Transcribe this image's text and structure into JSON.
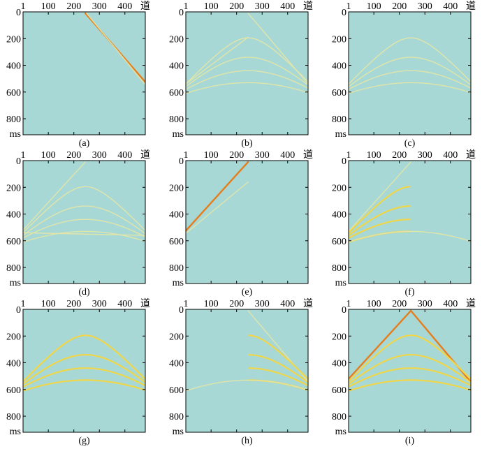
{
  "colors": {
    "background": "#a8d8d5",
    "weak": "#e3e6a8",
    "medium": "#efd64a",
    "strong": "#e67d1c",
    "axis": "#000000"
  },
  "axes": {
    "x_ticks": [
      "1",
      "100",
      "200",
      "300",
      "400"
    ],
    "x_tick_values": [
      1,
      100,
      200,
      300,
      400
    ],
    "x_unit_label": "道",
    "y_ticks": [
      "0",
      "200",
      "400",
      "600",
      "800"
    ],
    "y_tick_values": [
      0,
      200,
      400,
      600,
      800
    ],
    "y_unit_label": "ms",
    "x_range": [
      1,
      480
    ],
    "y_range": [
      0,
      920
    ]
  },
  "panels": [
    {
      "label": "(a)",
      "events": [
        {
          "kind": "line",
          "from": [
            245,
            10
          ],
          "to": [
            480,
            525
          ],
          "strength": "strong"
        },
        {
          "kind": "line",
          "from": [
            250,
            10
          ],
          "to": [
            480,
            545
          ],
          "strength": "weak"
        }
      ]
    },
    {
      "label": "(b)",
      "events": [
        {
          "kind": "line",
          "from": [
            245,
            10
          ],
          "to": [
            480,
            540
          ],
          "strength": "weak"
        },
        {
          "kind": "line",
          "from": [
            1,
            540
          ],
          "to": [
            245,
            190
          ],
          "strength": "weak"
        },
        {
          "kind": "hyperbola",
          "apex_x": 245,
          "t0": 195,
          "edge_t": 540,
          "strength": "weak"
        },
        {
          "kind": "hyperbola",
          "apex_x": 245,
          "t0": 340,
          "edge_t": 560,
          "strength": "weak"
        },
        {
          "kind": "hyperbola",
          "apex_x": 245,
          "t0": 440,
          "edge_t": 580,
          "strength": "weak"
        },
        {
          "kind": "hyperbola",
          "apex_x": 245,
          "t0": 530,
          "edge_t": 610,
          "strength": "weak"
        }
      ]
    },
    {
      "label": "(c)",
      "events": [
        {
          "kind": "hyperbola",
          "apex_x": 245,
          "t0": 195,
          "edge_t": 540,
          "strength": "weak"
        },
        {
          "kind": "hyperbola",
          "apex_x": 245,
          "t0": 340,
          "edge_t": 560,
          "strength": "weak"
        },
        {
          "kind": "hyperbola",
          "apex_x": 245,
          "t0": 440,
          "edge_t": 580,
          "strength": "weak"
        },
        {
          "kind": "hyperbola",
          "apex_x": 245,
          "t0": 530,
          "edge_t": 610,
          "strength": "weak"
        }
      ]
    },
    {
      "label": "(d)",
      "events": [
        {
          "kind": "line",
          "from": [
            1,
            520
          ],
          "to": [
            245,
            10
          ],
          "strength": "weak"
        },
        {
          "kind": "line",
          "from": [
            1,
            540
          ],
          "to": [
            480,
            560
          ],
          "strength": "weak"
        },
        {
          "kind": "hyperbola",
          "apex_x": 245,
          "t0": 195,
          "edge_t": 540,
          "strength": "weak"
        },
        {
          "kind": "hyperbola",
          "apex_x": 245,
          "t0": 340,
          "edge_t": 560,
          "strength": "weak"
        },
        {
          "kind": "hyperbola",
          "apex_x": 245,
          "t0": 440,
          "edge_t": 580,
          "strength": "weak"
        },
        {
          "kind": "hyperbola",
          "apex_x": 245,
          "t0": 530,
          "edge_t": 610,
          "strength": "weak"
        }
      ]
    },
    {
      "label": "(e)",
      "events": [
        {
          "kind": "line",
          "from": [
            1,
            525
          ],
          "to": [
            245,
            10
          ],
          "strength": "strong"
        },
        {
          "kind": "line",
          "from": [
            1,
            545
          ],
          "to": [
            245,
            160
          ],
          "strength": "weak"
        }
      ]
    },
    {
      "label": "(f)",
      "events": [
        {
          "kind": "line",
          "from": [
            1,
            530
          ],
          "to": [
            245,
            10
          ],
          "strength": "weak"
        },
        {
          "kind": "half-hyperbola-left",
          "apex_x": 245,
          "t0": 195,
          "edge_t": 540,
          "strength": "medium"
        },
        {
          "kind": "half-hyperbola-left",
          "apex_x": 245,
          "t0": 340,
          "edge_t": 560,
          "strength": "medium"
        },
        {
          "kind": "half-hyperbola-left",
          "apex_x": 245,
          "t0": 440,
          "edge_t": 580,
          "strength": "medium"
        },
        {
          "kind": "half-hyperbola-left",
          "apex_x": 245,
          "t0": 530,
          "edge_t": 610,
          "strength": "medium"
        },
        {
          "kind": "hyperbola",
          "apex_x": 245,
          "t0": 530,
          "edge_t": 610,
          "strength": "weak"
        }
      ]
    },
    {
      "label": "(g)",
      "events": [
        {
          "kind": "hyperbola",
          "apex_x": 245,
          "t0": 195,
          "edge_t": 540,
          "strength": "medium"
        },
        {
          "kind": "hyperbola",
          "apex_x": 245,
          "t0": 340,
          "edge_t": 560,
          "strength": "medium"
        },
        {
          "kind": "hyperbola",
          "apex_x": 245,
          "t0": 440,
          "edge_t": 580,
          "strength": "medium"
        },
        {
          "kind": "hyperbola",
          "apex_x": 245,
          "t0": 530,
          "edge_t": 610,
          "strength": "medium"
        }
      ]
    },
    {
      "label": "(h)",
      "events": [
        {
          "kind": "line",
          "from": [
            245,
            10
          ],
          "to": [
            480,
            540
          ],
          "strength": "weak"
        },
        {
          "kind": "half-hyperbola-right",
          "apex_x": 245,
          "t0": 195,
          "edge_t": 540,
          "strength": "medium"
        },
        {
          "kind": "half-hyperbola-right",
          "apex_x": 245,
          "t0": 340,
          "edge_t": 560,
          "strength": "medium"
        },
        {
          "kind": "half-hyperbola-right",
          "apex_x": 245,
          "t0": 440,
          "edge_t": 580,
          "strength": "medium"
        },
        {
          "kind": "half-hyperbola-right",
          "apex_x": 245,
          "t0": 530,
          "edge_t": 610,
          "strength": "medium"
        },
        {
          "kind": "hyperbola",
          "apex_x": 245,
          "t0": 530,
          "edge_t": 610,
          "strength": "weak"
        }
      ]
    },
    {
      "label": "(i)",
      "events": [
        {
          "kind": "line",
          "from": [
            1,
            520
          ],
          "to": [
            245,
            10
          ],
          "strength": "strong"
        },
        {
          "kind": "line",
          "from": [
            245,
            10
          ],
          "to": [
            480,
            545
          ],
          "strength": "strong"
        },
        {
          "kind": "hyperbola",
          "apex_x": 245,
          "t0": 195,
          "edge_t": 540,
          "strength": "medium"
        },
        {
          "kind": "hyperbola",
          "apex_x": 245,
          "t0": 340,
          "edge_t": 560,
          "strength": "medium"
        },
        {
          "kind": "hyperbola",
          "apex_x": 245,
          "t0": 440,
          "edge_t": 580,
          "strength": "medium"
        },
        {
          "kind": "hyperbola",
          "apex_x": 245,
          "t0": 530,
          "edge_t": 610,
          "strength": "medium"
        }
      ]
    }
  ]
}
